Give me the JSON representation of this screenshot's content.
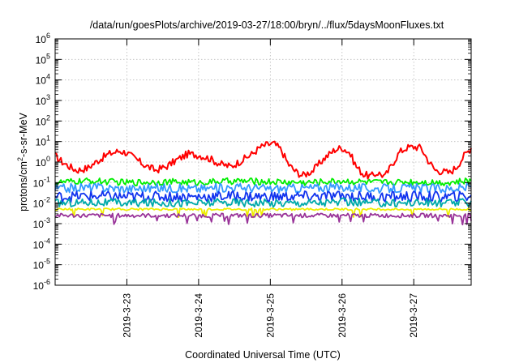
{
  "chart_data": {
    "type": "line",
    "title": "/data/run/goesPlots/archive/2019-03-27/18:00/bryn/../flux/5daysMoonFluxes.txt",
    "xlabel": "Coordinated Universal Time (UTC)",
    "ylabel": "protons/cm²-s-sr-MeV",
    "ylabel_parts": {
      "pre": "protons/cm",
      "sup": "2",
      "post": "-s-sr-MeV"
    },
    "yscale": "log",
    "ylim": [
      1e-06,
      1000000.0
    ],
    "y_tick_labels": [
      {
        "base": "10",
        "exp": "-6"
      },
      {
        "base": "10",
        "exp": "-5"
      },
      {
        "base": "10",
        "exp": "-4"
      },
      {
        "base": "10",
        "exp": "-3"
      },
      {
        "base": "10",
        "exp": "-2"
      },
      {
        "base": "10",
        "exp": "-1"
      },
      {
        "base": "10",
        "exp": "0"
      },
      {
        "base": "10",
        "exp": "1"
      },
      {
        "base": "10",
        "exp": "2"
      },
      {
        "base": "10",
        "exp": "3"
      },
      {
        "base": "10",
        "exp": "4"
      },
      {
        "base": "10",
        "exp": "5"
      },
      {
        "base": "10",
        "exp": "6"
      }
    ],
    "xlim": [
      22.0,
      27.8
    ],
    "x_ticks": [
      {
        "x": 23,
        "label": "2019-3-23"
      },
      {
        "x": 24,
        "label": "2019-3-24"
      },
      {
        "x": 25,
        "label": "2019-3-25"
      },
      {
        "x": 26,
        "label": "2019-3-26"
      },
      {
        "x": 27,
        "label": "2019-3-27"
      }
    ],
    "grid": true,
    "series": [
      {
        "color": "#ff0000",
        "x": [
          22.0,
          22.1,
          22.2,
          22.3,
          22.45,
          22.6,
          22.75,
          22.9,
          23.0,
          23.1,
          23.25,
          23.4,
          23.55,
          23.7,
          23.85,
          24.0,
          24.15,
          24.3,
          24.45,
          24.6,
          24.75,
          24.85,
          24.95,
          25.05,
          25.15,
          25.25,
          25.35,
          25.45,
          25.6,
          25.75,
          25.9,
          26.0,
          26.1,
          26.2,
          26.3,
          26.4,
          26.5,
          26.6,
          26.7,
          26.8,
          26.9,
          27.0,
          27.1,
          27.2,
          27.3,
          27.4,
          27.5,
          27.6,
          27.7,
          27.8
        ],
        "y": [
          2.0,
          1.0,
          0.6,
          0.4,
          0.5,
          1.2,
          2.5,
          3.5,
          2.8,
          1.6,
          0.7,
          0.4,
          0.6,
          1.3,
          2.5,
          2.2,
          1.5,
          0.8,
          0.6,
          1.2,
          2.5,
          5.0,
          7.0,
          8.0,
          4.0,
          0.8,
          0.35,
          0.22,
          0.4,
          1.5,
          4.0,
          5.0,
          3.0,
          0.6,
          0.25,
          0.2,
          0.3,
          0.2,
          0.8,
          3.0,
          5.0,
          5.5,
          5.0,
          1.2,
          0.4,
          0.35,
          0.3,
          0.6,
          2.0,
          5.0
        ]
      },
      {
        "color": "#00ee00",
        "x": [
          22.0,
          22.5,
          23.0,
          23.5,
          24.0,
          24.5,
          25.0,
          25.5,
          26.0,
          26.5,
          27.0,
          27.5,
          27.8
        ],
        "y": [
          0.1,
          0.12,
          0.1,
          0.11,
          0.1,
          0.12,
          0.11,
          0.1,
          0.12,
          0.1,
          0.11,
          0.1,
          0.12
        ]
      },
      {
        "color": "#3399ff",
        "x": [
          22.0,
          22.5,
          23.0,
          23.5,
          24.0,
          24.5,
          25.0,
          25.5,
          26.0,
          26.5,
          27.0,
          27.5,
          27.8
        ],
        "y": [
          0.05,
          0.06,
          0.05,
          0.055,
          0.05,
          0.06,
          0.05,
          0.055,
          0.06,
          0.05,
          0.055,
          0.05,
          0.06
        ]
      },
      {
        "color": "#1133ee",
        "x": [
          22.0,
          22.5,
          23.0,
          23.5,
          24.0,
          24.5,
          25.0,
          25.5,
          26.0,
          26.5,
          27.0,
          27.5,
          27.8
        ],
        "y": [
          0.02,
          0.022,
          0.02,
          0.021,
          0.02,
          0.022,
          0.02,
          0.021,
          0.022,
          0.02,
          0.021,
          0.02,
          0.022
        ]
      },
      {
        "color": "#00aaaa",
        "x": [
          22.0,
          22.5,
          23.0,
          23.5,
          24.0,
          24.5,
          25.0,
          25.5,
          26.0,
          26.5,
          27.0,
          27.5,
          27.8
        ],
        "y": [
          0.01,
          0.011,
          0.01,
          0.0105,
          0.01,
          0.011,
          0.01,
          0.0105,
          0.011,
          0.01,
          0.0105,
          0.01,
          0.011
        ]
      },
      {
        "color": "#eeee00",
        "x": [
          22.0,
          22.5,
          23.0,
          23.5,
          24.0,
          24.5,
          25.0,
          25.5,
          26.0,
          26.5,
          27.0,
          27.5,
          27.8
        ],
        "y": [
          0.005,
          0.005,
          0.005,
          0.005,
          0.005,
          0.005,
          0.005,
          0.005,
          0.005,
          0.005,
          0.005,
          0.005,
          0.005
        ]
      },
      {
        "color": "#993399",
        "x": [
          22.0,
          22.5,
          23.0,
          23.5,
          24.0,
          24.5,
          25.0,
          25.5,
          26.0,
          26.5,
          27.0,
          27.5,
          27.8
        ],
        "y": [
          0.0025,
          0.0025,
          0.0025,
          0.0025,
          0.0025,
          0.0025,
          0.0025,
          0.0025,
          0.0025,
          0.0025,
          0.0025,
          0.0025,
          0.0025
        ]
      }
    ]
  }
}
